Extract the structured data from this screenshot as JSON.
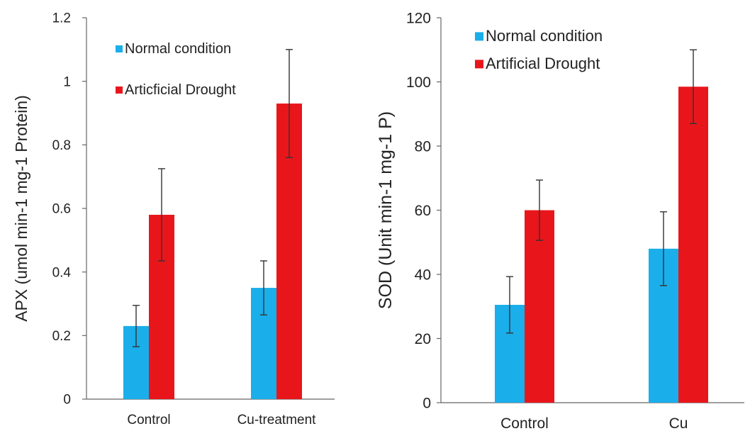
{
  "chart_data": [
    {
      "type": "bar",
      "ylabel": "APX (umol min-1 mg-1 Protein)",
      "xlabel": "",
      "categories": [
        "Control",
        "Cu-treatment"
      ],
      "ylim": [
        0,
        1.2
      ],
      "yticks": [
        "0",
        "0.2",
        "0.4",
        "0.6",
        "0.8",
        "1",
        "1.2"
      ],
      "grid": false,
      "legend_position": "top-left",
      "series": [
        {
          "name": "Normal condition",
          "color": "#1aaeea",
          "values": [
            0.23,
            0.35
          ],
          "errors": [
            0.065,
            0.085
          ]
        },
        {
          "name": "Articficial Drought",
          "color": "#e8161b",
          "values": [
            0.58,
            0.93
          ],
          "errors": [
            0.145,
            0.17
          ]
        }
      ]
    },
    {
      "type": "bar",
      "ylabel": "SOD (Unit min-1 mg-1 P)",
      "xlabel": "",
      "categories": [
        "Control",
        "Cu"
      ],
      "ylim": [
        0,
        120
      ],
      "yticks": [
        "0",
        "20",
        "40",
        "60",
        "80",
        "100",
        "120"
      ],
      "grid": false,
      "legend_position": "top-left",
      "series": [
        {
          "name": "Normal condition",
          "color": "#1aaeea",
          "values": [
            30.5,
            48
          ],
          "errors": [
            8.8,
            11.5
          ]
        },
        {
          "name": "Artificial Drought",
          "color": "#e8161b",
          "values": [
            60,
            98.5
          ],
          "errors": [
            9.4,
            11.5
          ]
        }
      ]
    }
  ]
}
